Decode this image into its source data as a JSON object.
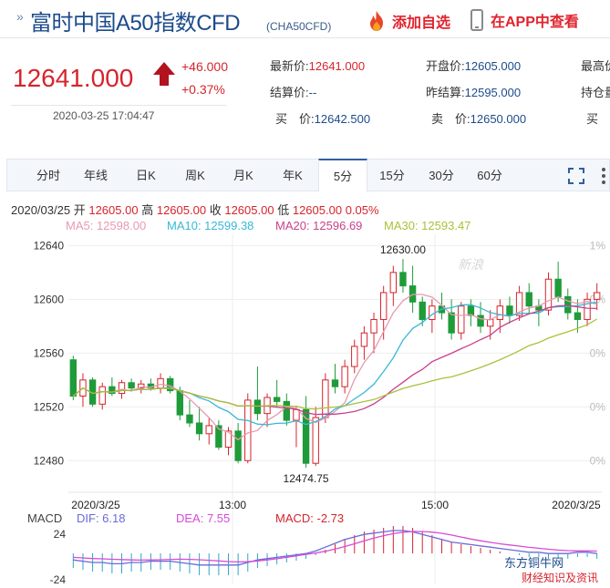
{
  "header": {
    "title": "富时中国A50指数CFD",
    "code": "(CHA50CFD)",
    "add_watchlist": "添加自选",
    "view_in_app": "在APP中查看"
  },
  "quote": {
    "price": "12641.000",
    "change": "+46.000",
    "change_pct": "+0.37%",
    "datetime": "2020-03-25 17:04:47"
  },
  "fields": {
    "latest_label": "最新价:",
    "latest_value": "12641.000",
    "open_label": "开盘价:",
    "open_value": "12605.000",
    "high_label": "最高价",
    "settle_label": "结算价:",
    "settle_value": "--",
    "prev_settle_label": "昨结算:",
    "prev_settle_value": "12595.000",
    "position_label": "持仓量",
    "bid_label": "买　价:",
    "bid_value": "12642.500",
    "ask_label": "卖　价:",
    "ask_value": "12650.000",
    "bid_vol_label": "买　"
  },
  "tabs": [
    "分时",
    "年线",
    "日K",
    "周K",
    "月K",
    "年K",
    "5分",
    "15分",
    "30分",
    "60分"
  ],
  "active_tab": "5分",
  "ohlc": {
    "date": "2020/03/25",
    "open_label": "开",
    "open": "12605.00",
    "high_label": "高",
    "high": "12605.00",
    "close_label": "收",
    "close": "12605.00",
    "low_label": "低",
    "low": "12605.00",
    "pct": "0.05%"
  },
  "ma": {
    "ma5": "MA5: 12598.00",
    "ma10": "MA10: 12599.38",
    "ma20": "MA20: 12596.69",
    "ma30": "MA30: 12593.47"
  },
  "macd_legend": {
    "label": "MACD",
    "dif": "DIF: 6.18",
    "dea": "DEA: 7.55",
    "macd": "MACD: -2.73"
  },
  "watermark": {
    "line1": "东方铜牛网",
    "line2": "财经知识及资讯",
    "sina": "新浪"
  },
  "colors": {
    "up": "#d6242c",
    "down": "#1f9b3a",
    "ma5": "#e89ab0",
    "ma10": "#39b8d6",
    "ma20": "#c8418c",
    "ma30": "#a8c23a",
    "dif": "#6a6ad8",
    "dea": "#d84ad8"
  },
  "chart_data": {
    "type": "candlestick",
    "y_ticks": [
      "12640",
      "12600",
      "12560",
      "12520",
      "12480"
    ],
    "right_ticks": [
      "1%",
      "0%",
      "0%",
      "0%",
      "0%"
    ],
    "x_ticks": [
      "2020/3/25",
      "13:00",
      "15:00",
      "2020/3/25"
    ],
    "max_label": "12630.00",
    "min_label": "12474.75",
    "ylim": [
      12470,
      12645
    ],
    "candles": [
      [
        12555,
        12558,
        12525,
        12528
      ],
      [
        12528,
        12545,
        12520,
        12540
      ],
      [
        12540,
        12542,
        12520,
        12522
      ],
      [
        12522,
        12538,
        12518,
        12535
      ],
      [
        12535,
        12542,
        12528,
        12530
      ],
      [
        12530,
        12540,
        12526,
        12538
      ],
      [
        12538,
        12541,
        12532,
        12534
      ],
      [
        12534,
        12540,
        12530,
        12537
      ],
      [
        12537,
        12541,
        12532,
        12534
      ],
      [
        12534,
        12545,
        12530,
        12541
      ],
      [
        12541,
        12543,
        12530,
        12532
      ],
      [
        12532,
        12535,
        12510,
        12514
      ],
      [
        12514,
        12525,
        12505,
        12508
      ],
      [
        12508,
        12520,
        12495,
        12500
      ],
      [
        12500,
        12512,
        12492,
        12506
      ],
      [
        12506,
        12510,
        12488,
        12490
      ],
      [
        12490,
        12505,
        12484,
        12502
      ],
      [
        12502,
        12508,
        12478,
        12480
      ],
      [
        12480,
        12530,
        12478,
        12525
      ],
      [
        12525,
        12550,
        12510,
        12515
      ],
      [
        12515,
        12530,
        12505,
        12527
      ],
      [
        12527,
        12540,
        12520,
        12524
      ],
      [
        12524,
        12530,
        12506,
        12510
      ],
      [
        12510,
        12520,
        12490,
        12518
      ],
      [
        12518,
        12528,
        12474.75,
        12478
      ],
      [
        12478,
        12520,
        12476,
        12512
      ],
      [
        12512,
        12545,
        12508,
        12540
      ],
      [
        12540,
        12552,
        12530,
        12535
      ],
      [
        12535,
        12555,
        12530,
        12550
      ],
      [
        12550,
        12570,
        12545,
        12565
      ],
      [
        12565,
        12580,
        12555,
        12575
      ],
      [
        12575,
        12590,
        12560,
        12585
      ],
      [
        12585,
        12610,
        12570,
        12605
      ],
      [
        12605,
        12625,
        12595,
        12620
      ],
      [
        12620,
        12630,
        12605,
        12610
      ],
      [
        12610,
        12625,
        12590,
        12598
      ],
      [
        12598,
        12602,
        12580,
        12585
      ],
      [
        12585,
        12600,
        12575,
        12595
      ],
      [
        12595,
        12605,
        12585,
        12590
      ],
      [
        12590,
        12600,
        12570,
        12575
      ],
      [
        12575,
        12598,
        12570,
        12595
      ],
      [
        12595,
        12600,
        12580,
        12588
      ],
      [
        12588,
        12598,
        12575,
        12580
      ],
      [
        12580,
        12592,
        12570,
        12585
      ],
      [
        12585,
        12600,
        12575,
        12595
      ],
      [
        12595,
        12602,
        12582,
        12588
      ],
      [
        12588,
        12610,
        12584,
        12605
      ],
      [
        12605,
        12612,
        12590,
        12595
      ],
      [
        12595,
        12600,
        12580,
        12592
      ],
      [
        12592,
        12620,
        12588,
        12615
      ],
      [
        12615,
        12628,
        12598,
        12602
      ],
      [
        12602,
        12608,
        12585,
        12590
      ],
      [
        12590,
        12600,
        12575,
        12585
      ],
      [
        12585,
        12605,
        12580,
        12600
      ],
      [
        12600,
        12612,
        12592,
        12605
      ]
    ],
    "macd_hist": [
      -8,
      -9,
      -10,
      -10,
      -11,
      -11,
      -10,
      -10,
      -9,
      -9,
      -9,
      -10,
      -11,
      -12,
      -12,
      -12,
      -12,
      -12,
      -10,
      -8,
      -7,
      -6,
      -5,
      -4,
      -3,
      -1,
      2,
      5,
      8,
      10,
      12,
      13,
      14,
      15,
      15,
      14,
      12,
      10,
      8,
      6,
      5,
      4,
      3,
      2,
      1,
      0,
      -1,
      -2,
      -2,
      -3,
      -3,
      -3,
      -2,
      -2,
      -3
    ]
  }
}
